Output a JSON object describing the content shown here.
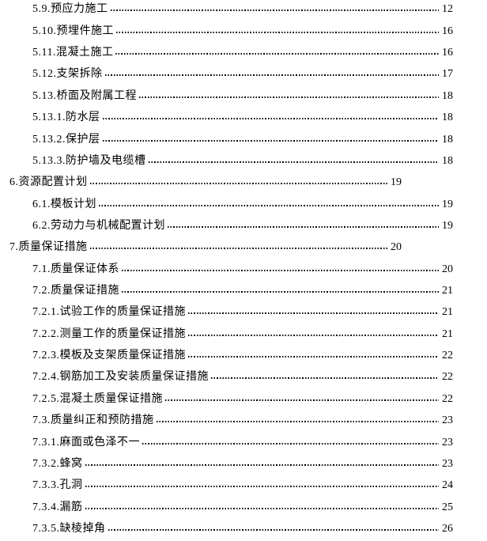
{
  "page": {
    "background_color": "#ffffff",
    "text_color": "#000000",
    "leader_color": "#000000"
  },
  "toc": {
    "rows": [
      {
        "label": "5.9.预应力施工",
        "page": "12",
        "level": 2
      },
      {
        "label": "5.10.预埋件施工",
        "page": "16",
        "level": 2
      },
      {
        "label": "5.11.混凝土施工",
        "page": "16",
        "level": 2
      },
      {
        "label": "5.12.支架拆除",
        "page": "17",
        "level": 2
      },
      {
        "label": "5.13.桥面及附属工程",
        "page": "18",
        "level": 2
      },
      {
        "label": "5.13.1.防水层",
        "page": "18",
        "level": 3
      },
      {
        "label": "5.13.2.保护层",
        "page": "18",
        "level": 3
      },
      {
        "label": "5.13.3.防护墙及电缆槽",
        "page": "18",
        "level": 3
      },
      {
        "label": "6.资源配置计划",
        "page": "19",
        "level": 1
      },
      {
        "label": "6.1.模板计划",
        "page": "19",
        "level": 2
      },
      {
        "label": "6.2.劳动力与机械配置计划",
        "page": "19",
        "level": 2
      },
      {
        "label": "7.质量保证措施",
        "page": "20",
        "level": 1
      },
      {
        "label": "7.1.质量保证体系",
        "page": "20",
        "level": 2
      },
      {
        "label": "7.2.质量保证措施",
        "page": "21",
        "level": 2
      },
      {
        "label": "7.2.1.试验工作的质量保证措施",
        "page": "21",
        "level": 3
      },
      {
        "label": "7.2.2.测量工作的质量保证措施",
        "page": "21",
        "level": 3
      },
      {
        "label": "7.2.3.模板及支架质量保证措施",
        "page": "22",
        "level": 3
      },
      {
        "label": "7.2.4.钢筋加工及安装质量保证措施",
        "page": "22",
        "level": 3
      },
      {
        "label": "7.2.5.混凝土质量保证措施",
        "page": "22",
        "level": 3
      },
      {
        "label": "7.3.质量纠正和预防措施",
        "page": "23",
        "level": 2
      },
      {
        "label": "7.3.1.麻面或色泽不一",
        "page": "23",
        "level": 3
      },
      {
        "label": "7.3.2.蜂窝",
        "page": "23",
        "level": 3
      },
      {
        "label": "7.3.3.孔洞",
        "page": "24",
        "level": 3
      },
      {
        "label": "7.3.4.漏筋",
        "page": "25",
        "level": 3
      },
      {
        "label": "7.3.5.缺棱掉角",
        "page": "26",
        "level": 3
      }
    ]
  }
}
